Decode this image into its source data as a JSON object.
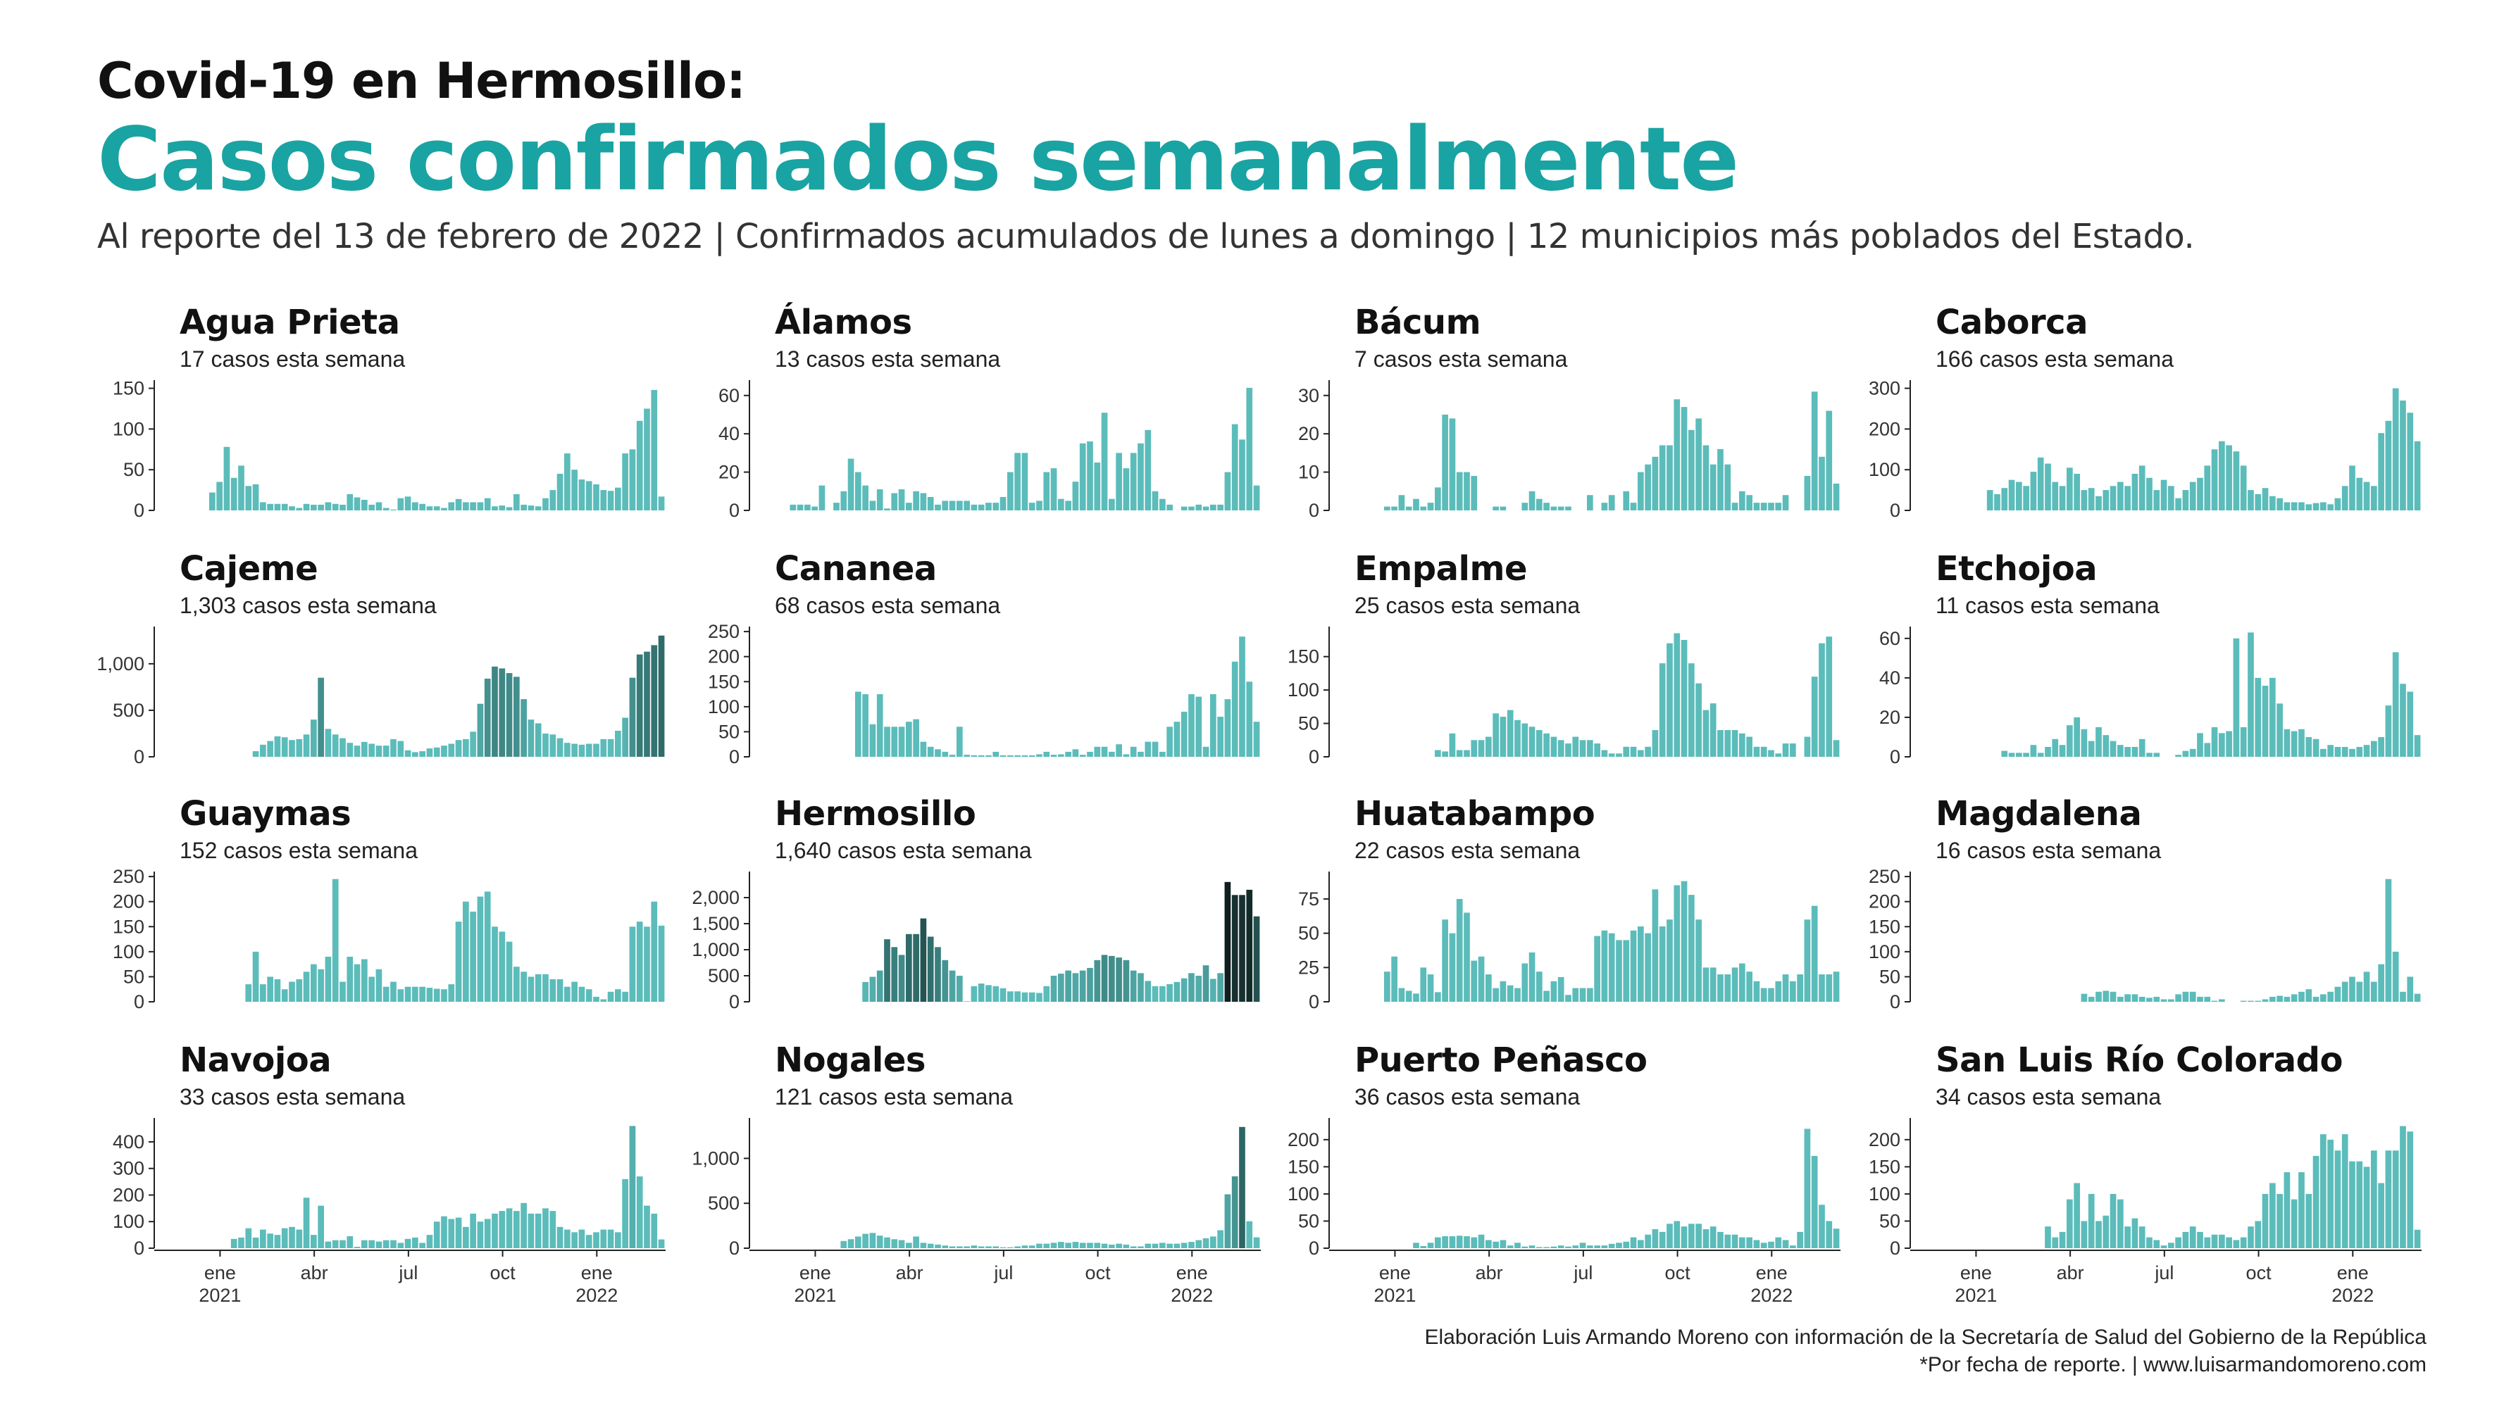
{
  "header": {
    "title": "Covid-19 en Hermosillo:",
    "headline": "Casos confirmados semanalmente",
    "subtitle": "Al reporte del 13 de febrero de 2022 | Confirmados acumulados de lunes a domingo | 12 municipios más poblados del Estado."
  },
  "footer": {
    "line1": "Elaboración Luis Armando Moreno con información de la Secretaría de Salud del Gobierno de la República",
    "line2": "*Por fecha de reporte. | www.luisarmandomoreno.com"
  },
  "colors": {
    "accent": "#1aa3a3",
    "bar_light": "#5bbcba",
    "bar_mid": "#2e6b69",
    "bar_dark": "#0f1e1e"
  },
  "x_axis": {
    "ticks": [
      {
        "week": 8,
        "label": "ene",
        "year": "2021"
      },
      {
        "week": 21,
        "label": "abr",
        "year": ""
      },
      {
        "week": 34,
        "label": "jul",
        "year": ""
      },
      {
        "week": 47,
        "label": "oct",
        "year": ""
      },
      {
        "week": 60,
        "label": "ene",
        "year": "2022"
      }
    ]
  },
  "chart_data": [
    {
      "type": "bar",
      "name": "Agua Prieta",
      "subtitle": "17 casos esta semana",
      "ylim": [
        0,
        160
      ],
      "yticks": [
        0,
        50,
        100,
        150
      ],
      "values": [
        22,
        35,
        78,
        40,
        55,
        30,
        32,
        10,
        8,
        8,
        8,
        5,
        3,
        8,
        7,
        7,
        10,
        8,
        7,
        20,
        16,
        13,
        7,
        10,
        3,
        1,
        15,
        17,
        10,
        8,
        5,
        5,
        3,
        10,
        14,
        10,
        10,
        10,
        15,
        5,
        6,
        4,
        20,
        7,
        6,
        5,
        15,
        25,
        45,
        70,
        50,
        38,
        36,
        32,
        25,
        24,
        28,
        70,
        75,
        110,
        125,
        148,
        17
      ]
    },
    {
      "type": "bar",
      "name": "Álamos",
      "subtitle": "13 casos esta semana",
      "ylim": [
        0,
        68
      ],
      "yticks": [
        0,
        20,
        40,
        60
      ],
      "values": [
        3,
        3,
        3,
        2,
        13,
        0,
        4,
        10,
        27,
        20,
        13,
        5,
        11,
        1,
        9,
        11,
        4,
        10,
        9,
        7,
        3,
        5,
        5,
        5,
        5,
        3,
        3,
        4,
        4,
        7,
        20,
        30,
        30,
        4,
        5,
        20,
        22,
        6,
        5,
        15,
        35,
        36,
        25,
        51,
        6,
        30,
        22,
        30,
        35,
        42,
        10,
        6,
        3,
        0,
        2,
        2,
        3,
        2,
        3,
        3,
        20,
        45,
        37,
        64,
        13
      ]
    },
    {
      "type": "bar",
      "name": "Bácum",
      "subtitle": "7 casos esta semana",
      "ylim": [
        0,
        34
      ],
      "yticks": [
        0,
        10,
        20,
        30
      ],
      "values": [
        1,
        1,
        4,
        1,
        3,
        1,
        2,
        6,
        25,
        24,
        10,
        10,
        9,
        0,
        0,
        1,
        1,
        0,
        0,
        2,
        5,
        3,
        2,
        1,
        1,
        1,
        0,
        0,
        4,
        0,
        2,
        4,
        0,
        5,
        2,
        10,
        12,
        14,
        17,
        17,
        29,
        27,
        21,
        24,
        17,
        12,
        16,
        12,
        2,
        5,
        4,
        2,
        2,
        2,
        2,
        4,
        0,
        0,
        9,
        31,
        14,
        26,
        7
      ]
    },
    {
      "type": "bar",
      "name": "Caborca",
      "subtitle": "166 casos esta semana",
      "ylim": [
        0,
        320
      ],
      "yticks": [
        0,
        100,
        200,
        300
      ],
      "values": [
        50,
        40,
        55,
        75,
        70,
        60,
        95,
        130,
        115,
        70,
        60,
        105,
        90,
        50,
        55,
        35,
        50,
        60,
        70,
        60,
        90,
        110,
        80,
        50,
        75,
        60,
        30,
        50,
        70,
        80,
        110,
        150,
        170,
        160,
        145,
        110,
        50,
        40,
        55,
        35,
        30,
        20,
        20,
        20,
        15,
        18,
        20,
        15,
        30,
        60,
        110,
        80,
        70,
        60,
        190,
        220,
        300,
        270,
        240,
        170
      ]
    },
    {
      "type": "bar",
      "name": "Cajeme",
      "subtitle": "1,303 casos esta semana",
      "ylim": [
        0,
        1400
      ],
      "yticks": [
        0,
        500,
        1000
      ],
      "values": [
        60,
        130,
        170,
        220,
        210,
        180,
        190,
        240,
        400,
        850,
        300,
        240,
        200,
        150,
        120,
        160,
        140,
        120,
        120,
        190,
        170,
        70,
        50,
        60,
        90,
        100,
        120,
        140,
        180,
        190,
        270,
        570,
        840,
        970,
        950,
        900,
        860,
        620,
        400,
        360,
        250,
        240,
        200,
        150,
        140,
        130,
        140,
        140,
        190,
        190,
        280,
        420,
        850,
        1100,
        1130,
        1200,
        1303
      ]
    },
    {
      "type": "bar",
      "name": "Cananea",
      "subtitle": "68 casos esta semana",
      "ylim": [
        0,
        260
      ],
      "yticks": [
        0,
        50,
        100,
        150,
        200,
        250
      ],
      "values": [
        130,
        125,
        65,
        125,
        60,
        60,
        60,
        70,
        75,
        30,
        20,
        15,
        10,
        4,
        60,
        4,
        3,
        3,
        3,
        10,
        3,
        3,
        3,
        3,
        3,
        5,
        10,
        4,
        5,
        10,
        15,
        4,
        10,
        20,
        20,
        10,
        25,
        5,
        20,
        10,
        30,
        30,
        10,
        60,
        70,
        90,
        125,
        120,
        20,
        125,
        80,
        115,
        190,
        240,
        150,
        70
      ]
    },
    {
      "type": "bar",
      "name": "Empalme",
      "subtitle": "25 casos esta semana",
      "ylim": [
        0,
        195
      ],
      "yticks": [
        0,
        50,
        100,
        150
      ],
      "values": [
        10,
        8,
        35,
        10,
        10,
        25,
        25,
        30,
        65,
        60,
        70,
        55,
        50,
        45,
        40,
        35,
        30,
        25,
        20,
        30,
        25,
        25,
        20,
        10,
        5,
        5,
        15,
        15,
        10,
        15,
        40,
        140,
        170,
        185,
        175,
        140,
        110,
        70,
        80,
        40,
        40,
        40,
        35,
        30,
        15,
        15,
        10,
        5,
        20,
        20,
        0,
        30,
        120,
        170,
        180,
        25
      ]
    },
    {
      "type": "bar",
      "name": "Etchojoa",
      "subtitle": "11 casos esta semana",
      "ylim": [
        0,
        66
      ],
      "yticks": [
        0,
        20,
        40,
        60
      ],
      "values": [
        3,
        2,
        2,
        2,
        6,
        2,
        5,
        9,
        6,
        16,
        20,
        14,
        8,
        15,
        11,
        8,
        6,
        5,
        5,
        9,
        2,
        2,
        0,
        0,
        1,
        3,
        4,
        12,
        7,
        15,
        12,
        13,
        60,
        15,
        63,
        40,
        36,
        40,
        27,
        14,
        13,
        14,
        10,
        9,
        4,
        6,
        5,
        5,
        4,
        5,
        6,
        8,
        10,
        26,
        53,
        37,
        33,
        11
      ]
    },
    {
      "type": "bar",
      "name": "Guaymas",
      "subtitle": "152 casos esta semana",
      "ylim": [
        0,
        260
      ],
      "yticks": [
        0,
        50,
        100,
        150,
        200,
        250
      ],
      "values": [
        35,
        100,
        35,
        50,
        45,
        25,
        40,
        45,
        60,
        75,
        65,
        90,
        245,
        40,
        90,
        75,
        85,
        50,
        65,
        30,
        40,
        25,
        30,
        30,
        30,
        28,
        26,
        25,
        35,
        160,
        200,
        180,
        210,
        220,
        150,
        140,
        120,
        70,
        60,
        50,
        55,
        55,
        45,
        45,
        30,
        40,
        30,
        25,
        10,
        5,
        20,
        25,
        20,
        150,
        160,
        150,
        200,
        152
      ]
    },
    {
      "type": "bar",
      "name": "Hermosillo",
      "subtitle": "1,640 casos esta semana",
      "ylim": [
        0,
        2500
      ],
      "yticks": [
        0,
        500,
        1000,
        1500,
        2000
      ],
      "values": [
        380,
        480,
        600,
        1200,
        1050,
        900,
        1300,
        1300,
        1600,
        1250,
        1050,
        800,
        600,
        500,
        10,
        300,
        350,
        320,
        300,
        260,
        200,
        200,
        180,
        180,
        170,
        300,
        500,
        540,
        600,
        550,
        600,
        650,
        800,
        900,
        880,
        850,
        800,
        600,
        550,
        400,
        300,
        300,
        340,
        380,
        450,
        550,
        500,
        700,
        440,
        550,
        2300,
        2050,
        2050,
        2150,
        1640
      ]
    },
    {
      "type": "bar",
      "name": "Huatabampo",
      "subtitle": "22 casos esta semana",
      "ylim": [
        0,
        95
      ],
      "yticks": [
        0,
        25,
        50,
        75
      ],
      "values": [
        22,
        33,
        10,
        8,
        6,
        25,
        20,
        7,
        60,
        50,
        75,
        65,
        30,
        33,
        20,
        10,
        15,
        12,
        10,
        28,
        36,
        22,
        8,
        15,
        18,
        5,
        10,
        10,
        10,
        48,
        52,
        50,
        45,
        45,
        52,
        55,
        50,
        82,
        55,
        60,
        85,
        88,
        78,
        60,
        25,
        25,
        20,
        20,
        25,
        28,
        22,
        15,
        10,
        10,
        15,
        20,
        15,
        20,
        60,
        70,
        20,
        20,
        22
      ]
    },
    {
      "type": "bar",
      "name": "Magdalena",
      "subtitle": "16 casos esta semana",
      "ylim": [
        0,
        260
      ],
      "yticks": [
        0,
        50,
        100,
        150,
        200,
        250
      ],
      "values": [
        16,
        10,
        20,
        22,
        20,
        10,
        15,
        15,
        10,
        8,
        10,
        5,
        5,
        15,
        20,
        20,
        10,
        10,
        2,
        5,
        0,
        0,
        2,
        2,
        2,
        5,
        10,
        12,
        10,
        15,
        20,
        25,
        10,
        15,
        20,
        30,
        40,
        50,
        40,
        60,
        40,
        75,
        245,
        100,
        20,
        50,
        16
      ]
    },
    {
      "type": "bar",
      "name": "Navojoa",
      "subtitle": "33 casos esta semana",
      "ylim": [
        0,
        490
      ],
      "yticks": [
        0,
        100,
        200,
        300,
        400
      ],
      "values": [
        35,
        40,
        75,
        40,
        70,
        55,
        50,
        75,
        80,
        70,
        190,
        50,
        160,
        25,
        30,
        30,
        45,
        5,
        30,
        30,
        25,
        30,
        30,
        20,
        35,
        40,
        20,
        50,
        100,
        120,
        110,
        115,
        80,
        130,
        100,
        110,
        130,
        140,
        150,
        140,
        170,
        130,
        130,
        150,
        140,
        80,
        70,
        60,
        70,
        50,
        60,
        70,
        70,
        60,
        260,
        460,
        270,
        160,
        130,
        33
      ]
    },
    {
      "type": "bar",
      "name": "Nogales",
      "subtitle": "121 casos esta semana",
      "ylim": [
        0,
        1450
      ],
      "yticks": [
        0,
        500,
        1000
      ],
      "values": [
        80,
        100,
        130,
        160,
        170,
        140,
        120,
        100,
        90,
        60,
        130,
        60,
        50,
        40,
        30,
        20,
        20,
        20,
        30,
        20,
        20,
        20,
        10,
        10,
        20,
        30,
        30,
        50,
        50,
        60,
        70,
        60,
        70,
        60,
        60,
        60,
        50,
        40,
        50,
        40,
        20,
        20,
        50,
        50,
        60,
        50,
        50,
        60,
        70,
        90,
        110,
        130,
        200,
        600,
        800,
        1350,
        300,
        121
      ]
    },
    {
      "type": "bar",
      "name": "Puerto Peñasco",
      "subtitle": "36 casos esta semana",
      "ylim": [
        0,
        240
      ],
      "yticks": [
        0,
        50,
        100,
        150,
        200
      ],
      "values": [
        10,
        4,
        10,
        20,
        22,
        22,
        23,
        22,
        20,
        25,
        15,
        12,
        15,
        5,
        10,
        3,
        5,
        2,
        2,
        3,
        5,
        3,
        5,
        10,
        5,
        5,
        5,
        8,
        10,
        12,
        20,
        15,
        25,
        35,
        30,
        45,
        50,
        40,
        45,
        45,
        35,
        40,
        30,
        25,
        25,
        20,
        20,
        15,
        10,
        12,
        20,
        15,
        5,
        30,
        220,
        170,
        80,
        50,
        36
      ]
    },
    {
      "type": "bar",
      "name": "San Luis Río Colorado",
      "subtitle": "34 casos esta semana",
      "ylim": [
        0,
        240
      ],
      "yticks": [
        0,
        50,
        100,
        150,
        200
      ],
      "values": [
        40,
        20,
        30,
        90,
        120,
        50,
        100,
        50,
        60,
        100,
        90,
        40,
        55,
        40,
        20,
        15,
        5,
        10,
        20,
        30,
        40,
        30,
        20,
        25,
        25,
        20,
        15,
        20,
        40,
        50,
        100,
        120,
        100,
        140,
        90,
        140,
        100,
        170,
        210,
        200,
        180,
        210,
        160,
        160,
        150,
        180,
        120,
        180,
        180,
        225,
        215,
        34
      ]
    }
  ]
}
